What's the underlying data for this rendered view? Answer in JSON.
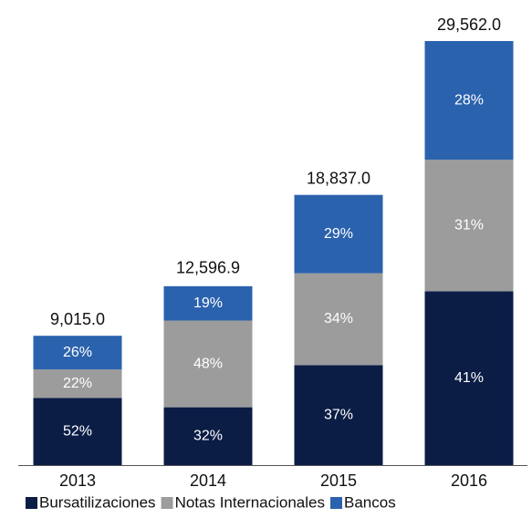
{
  "chart_data": {
    "type": "stacked_bar",
    "categories": [
      "2013",
      "2014",
      "2015",
      "2016"
    ],
    "totals": {
      "values": [
        9015.0,
        12596.9,
        18837.0,
        29562.0
      ],
      "value_labels": [
        "9,015.0",
        "12,596.9",
        "18,837.0",
        "29,562.0"
      ]
    },
    "series": [
      {
        "name": "Bursatilizaciones",
        "color": "#0b1d45",
        "values": [
          52,
          32,
          37,
          41
        ],
        "value_labels": [
          "52%",
          "32%",
          "37%",
          "41%"
        ]
      },
      {
        "name": "Notas Internacionales",
        "color": "#9c9c9c",
        "values": [
          22,
          48,
          34,
          31
        ],
        "value_labels": [
          "22%",
          "48%",
          "34%",
          "31%"
        ]
      },
      {
        "name": "Bancos",
        "color": "#2b62ad",
        "values": [
          26,
          19,
          29,
          28
        ],
        "value_labels": [
          "26%",
          "19%",
          "29%",
          "28%"
        ]
      }
    ]
  }
}
